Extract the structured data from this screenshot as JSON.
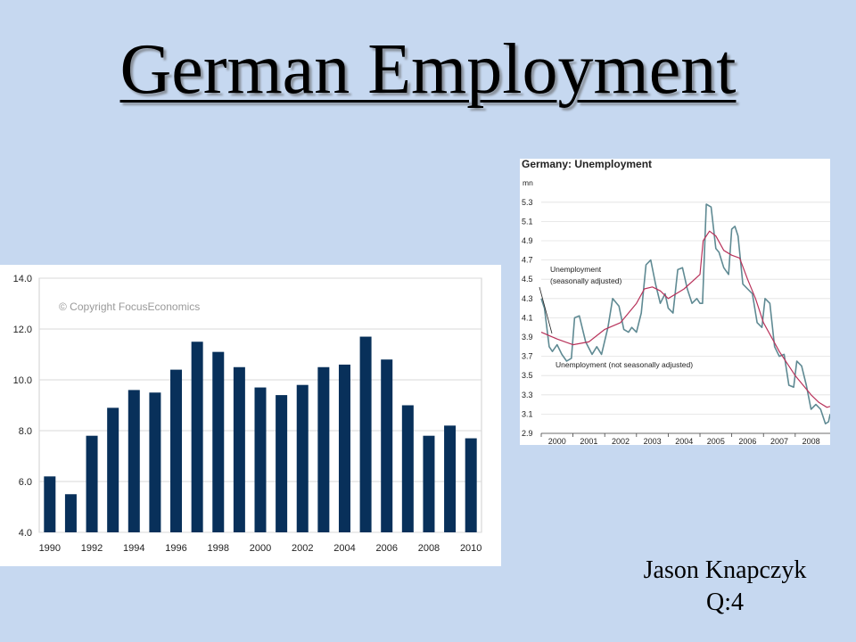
{
  "slide": {
    "title": "German Employment",
    "author": "Jason Knapczyk",
    "question": "Q:4"
  },
  "colors": {
    "background": "#c6d8f0",
    "bar": "#08305a",
    "line_nsa": "#5f8a93",
    "line_sa": "#b8325a",
    "grid": "#d8d8d8"
  },
  "chart_data": [
    {
      "type": "bar",
      "title": "",
      "watermark": "© Copyright FocusEconomics",
      "xlabel": "",
      "ylabel": "",
      "categories": [
        "1990",
        "1991",
        "1992",
        "1993",
        "1994",
        "1995",
        "1996",
        "1997",
        "1998",
        "1999",
        "2000",
        "2001",
        "2002",
        "2003",
        "2004",
        "2005",
        "2006",
        "2007",
        "2008",
        "2009",
        "2010"
      ],
      "values": [
        6.2,
        5.5,
        7.8,
        8.9,
        9.6,
        9.5,
        10.4,
        11.5,
        11.1,
        10.5,
        9.7,
        9.4,
        9.8,
        10.5,
        10.6,
        11.7,
        10.8,
        9.0,
        7.8,
        8.2,
        7.7
      ],
      "x_tick_labels": [
        "1990",
        "1992",
        "1994",
        "1996",
        "1998",
        "2000",
        "2002",
        "2004",
        "2006",
        "2008",
        "2010"
      ],
      "y_tick_labels": [
        "4.0",
        "6.0",
        "8.0",
        "10.0",
        "12.0",
        "14.0"
      ],
      "ylim": [
        4.0,
        14.0
      ],
      "grid": true,
      "legend": "none"
    },
    {
      "type": "line",
      "title": "Germany: Unemployment",
      "unit": "mn",
      "xlabel": "",
      "ylabel": "",
      "x_tick_labels": [
        "2000",
        "2001",
        "2002",
        "2003",
        "2004",
        "2005",
        "2006",
        "2007",
        "2008"
      ],
      "y_tick_labels": [
        "2.9",
        "3.1",
        "3.3",
        "3.5",
        "3.7",
        "3.9",
        "4.1",
        "4.3",
        "4.5",
        "4.7",
        "4.9",
        "5.1",
        "5.3"
      ],
      "xlim": [
        2000,
        2009.1
      ],
      "ylim": [
        2.9,
        5.4
      ],
      "grid": true,
      "annotations": [
        "Unemployment (seasonally adjusted)",
        "Unemployment (not seasonally adjusted)"
      ],
      "series": [
        {
          "name": "Unemployment (seasonally adjusted)",
          "x": [
            2000,
            2000.5,
            2001,
            2001.5,
            2002,
            2002.5,
            2003,
            2003.25,
            2003.5,
            2003.75,
            2004,
            2004.5,
            2005,
            2005.1,
            2005.3,
            2005.5,
            2005.75,
            2006,
            2006.25,
            2006.5,
            2006.75,
            2007,
            2007.5,
            2008,
            2008.5,
            2008.75,
            2009,
            2009.1
          ],
          "y": [
            3.95,
            3.88,
            3.82,
            3.85,
            3.98,
            4.05,
            4.25,
            4.4,
            4.42,
            4.38,
            4.3,
            4.4,
            4.55,
            4.9,
            5.0,
            4.95,
            4.8,
            4.75,
            4.72,
            4.5,
            4.3,
            4.05,
            3.75,
            3.5,
            3.3,
            3.22,
            3.17,
            3.18
          ]
        },
        {
          "name": "Unemployment (not seasonally adjusted)",
          "x": [
            2000,
            2000.1,
            2000.25,
            2000.35,
            2000.5,
            2000.65,
            2000.8,
            2000.95,
            2001.05,
            2001.2,
            2001.4,
            2001.6,
            2001.75,
            2001.9,
            2002.1,
            2002.25,
            2002.45,
            2002.6,
            2002.75,
            2002.85,
            2003,
            2003.15,
            2003.3,
            2003.45,
            2003.6,
            2003.75,
            2003.9,
            2004,
            2004.15,
            2004.3,
            2004.45,
            2004.6,
            2004.75,
            2004.9,
            2005,
            2005.08,
            2005.2,
            2005.35,
            2005.5,
            2005.6,
            2005.75,
            2005.9,
            2006,
            2006.1,
            2006.2,
            2006.35,
            2006.5,
            2006.65,
            2006.8,
            2006.95,
            2007.05,
            2007.2,
            2007.35,
            2007.5,
            2007.65,
            2007.8,
            2007.95,
            2008.05,
            2008.2,
            2008.35,
            2008.5,
            2008.65,
            2008.8,
            2008.95,
            2009.05,
            2009.1
          ],
          "y": [
            4.3,
            4.2,
            3.8,
            3.75,
            3.82,
            3.72,
            3.65,
            3.68,
            4.1,
            4.12,
            3.85,
            3.72,
            3.8,
            3.72,
            4.0,
            4.3,
            4.22,
            3.98,
            3.95,
            4.0,
            3.95,
            4.15,
            4.65,
            4.7,
            4.45,
            4.25,
            4.35,
            4.2,
            4.15,
            4.6,
            4.62,
            4.4,
            4.25,
            4.3,
            4.25,
            4.25,
            5.28,
            5.25,
            4.82,
            4.78,
            4.62,
            4.55,
            5.02,
            5.05,
            4.95,
            4.45,
            4.4,
            4.35,
            4.05,
            4.0,
            4.3,
            4.25,
            3.8,
            3.7,
            3.72,
            3.4,
            3.38,
            3.65,
            3.6,
            3.4,
            3.15,
            3.2,
            3.15,
            3.0,
            3.02,
            3.1
          ]
        }
      ]
    }
  ]
}
